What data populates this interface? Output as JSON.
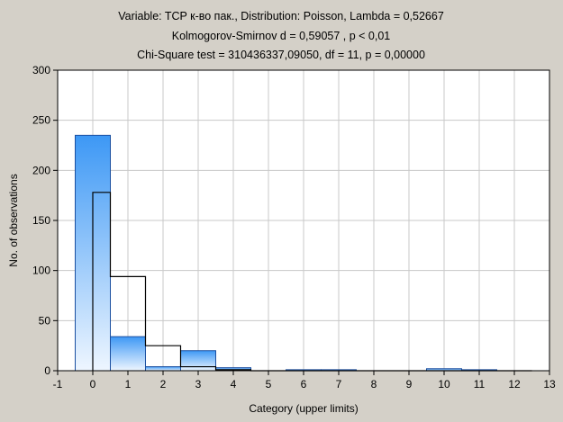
{
  "chart_data": {
    "type": "bar",
    "title_lines": [
      "Variable: TCP к-во пак., Distribution: Poisson, Lambda = 0,52667",
      "Kolmogorov-Smirnov d = 0,59057 , p < 0,01",
      "Chi-Square test = 310436337,09050, df = 11, p = 0,00000"
    ],
    "xlabel": "Category (upper limits)",
    "ylabel": "No. of observations",
    "xlim": [
      -1,
      13
    ],
    "ylim": [
      0,
      300
    ],
    "x_ticks": [
      "-1",
      "0",
      "1",
      "2",
      "3",
      "4",
      "5",
      "6",
      "7",
      "8",
      "9",
      "10",
      "11",
      "12",
      "13"
    ],
    "y_ticks": [
      "0",
      "50",
      "100",
      "150",
      "200",
      "250",
      "300"
    ],
    "grid": true,
    "series": [
      {
        "kind": "observed-histogram",
        "categories": [
          0,
          1,
          2,
          3,
          4,
          5,
          6,
          7,
          8,
          9,
          10,
          11,
          12
        ],
        "values": [
          235,
          34,
          4,
          20,
          3,
          0,
          1,
          1,
          0,
          0,
          2,
          1,
          0
        ]
      },
      {
        "kind": "expected-poisson-step",
        "categories": [
          0,
          1,
          2,
          3,
          4,
          5,
          6,
          7,
          8,
          9,
          10,
          11,
          12
        ],
        "values": [
          178,
          94,
          25,
          4,
          1,
          0,
          0,
          0,
          0,
          0,
          0,
          0,
          0
        ]
      }
    ],
    "colors": {
      "background": "#d4d0c8",
      "plot_background": "#ffffff",
      "grid": "#c8c8c8",
      "bar_top": "#3d98f5",
      "bar_bottom": "#eef6ff",
      "bar_stroke": "#1a4fa0",
      "expected_line": "#000000"
    }
  }
}
